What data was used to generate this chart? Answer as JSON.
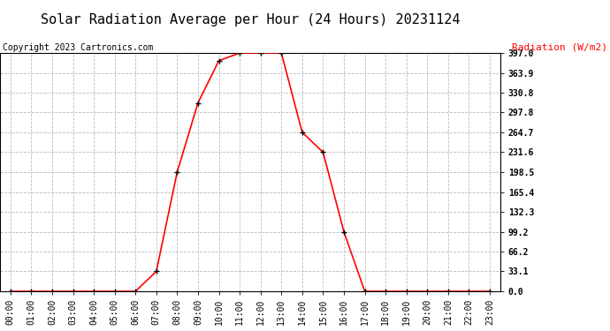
{
  "title": "Solar Radiation Average per Hour (24 Hours) 20231124",
  "ylabel": "Radiation (W/m2)",
  "copyright": "Copyright 2023 Cartronics.com",
  "hours": [
    "00:00",
    "01:00",
    "02:00",
    "03:00",
    "04:00",
    "05:00",
    "06:00",
    "07:00",
    "08:00",
    "09:00",
    "10:00",
    "11:00",
    "12:00",
    "13:00",
    "14:00",
    "15:00",
    "16:00",
    "17:00",
    "18:00",
    "19:00",
    "20:00",
    "21:00",
    "22:00",
    "23:00"
  ],
  "values": [
    0.0,
    0.0,
    0.0,
    0.0,
    0.0,
    0.0,
    0.0,
    33.1,
    198.5,
    313.9,
    384.0,
    397.0,
    397.0,
    397.0,
    264.7,
    231.6,
    99.2,
    0.0,
    0.0,
    0.0,
    0.0,
    0.0,
    0.0,
    0.0
  ],
  "yticks": [
    0.0,
    33.1,
    66.2,
    99.2,
    132.3,
    165.4,
    198.5,
    231.6,
    264.7,
    297.8,
    330.8,
    363.9,
    397.0
  ],
  "line_color": "red",
  "marker_color": "black",
  "grid_color": "#bbbbbb",
  "title_color": "black",
  "ylabel_color": "red",
  "copyright_color": "black",
  "bg_color": "white",
  "title_fontsize": 11,
  "ylabel_fontsize": 8,
  "copyright_fontsize": 7,
  "tick_fontsize": 7,
  "ylim_min": 0.0,
  "ylim_max": 397.0
}
